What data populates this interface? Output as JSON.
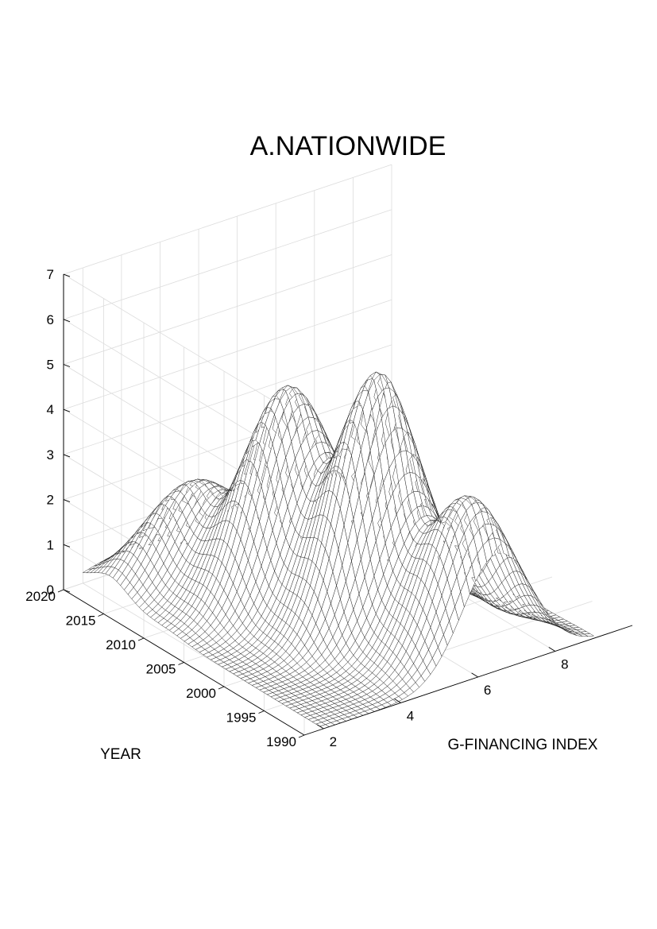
{
  "chart_data": {
    "type": "surface",
    "title": "A.NATIONWIDE",
    "xlabel": "G-FINANCING INDEX",
    "ylabel": "YEAR",
    "zlabel": "",
    "xlim": [
      1.5,
      10
    ],
    "ylim": [
      1990,
      2020
    ],
    "zlim": [
      0,
      7
    ],
    "x_ticks": [
      2,
      4,
      6,
      8
    ],
    "y_ticks": [
      1990,
      1995,
      2000,
      2005,
      2010,
      2015,
      2020
    ],
    "z_ticks": [
      0,
      1,
      2,
      3,
      4,
      5,
      6,
      7
    ],
    "grid": true,
    "colormap": "white-mesh",
    "series": [
      {
        "year": 1990,
        "peak_index": 6.5,
        "peak_value": 2.6
      },
      {
        "year": 1995,
        "peak_index": 6.0,
        "peak_value": 3.5
      },
      {
        "year": 2000,
        "peak_index": 5.5,
        "peak_value": 4.8
      },
      {
        "year": 2005,
        "peak_index": 5.0,
        "peak_value": 4.6
      },
      {
        "year": 2010,
        "peak_index": 4.5,
        "peak_value": 3.6
      },
      {
        "year": 2015,
        "peak_index": 3.8,
        "peak_value": 2.0
      },
      {
        "year": 2020,
        "peak_index": 3.0,
        "peak_value": 0.5
      }
    ]
  }
}
